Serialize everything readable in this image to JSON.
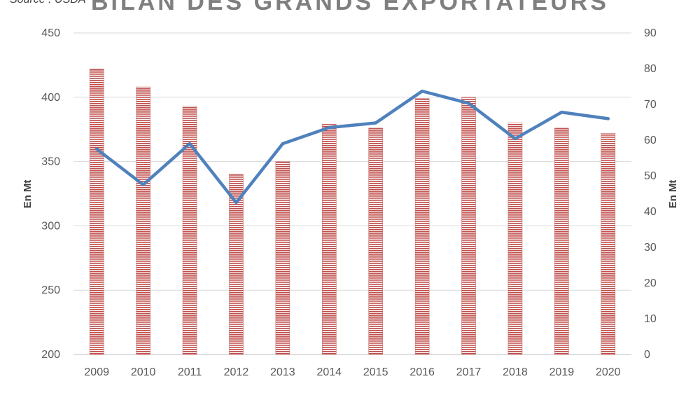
{
  "source": "Source : USDA",
  "chart_data": {
    "type": "bar",
    "title": "BILAN DES GRANDS EXPORTATEURS",
    "categories": [
      "2009",
      "2010",
      "2011",
      "2012",
      "2013",
      "2014",
      "2015",
      "2016",
      "2017",
      "2018",
      "2019",
      "2020"
    ],
    "series": [
      {
        "type": "bar",
        "axis": "left",
        "values": [
          422,
          408,
          393,
          340,
          350,
          379,
          376,
          399,
          400,
          380,
          376,
          372
        ],
        "color": "#c0504d"
      },
      {
        "type": "line",
        "axis": "right",
        "values": [
          57.5,
          47.5,
          59,
          42.5,
          59,
          63.5,
          64.8,
          73.7,
          70.3,
          60.4,
          67.8,
          66
        ],
        "color": "#4f81bd"
      }
    ],
    "ylabel": "En Mt",
    "y2label": "En Mt",
    "ylim": [
      200,
      450
    ],
    "y2lim": [
      0,
      90
    ],
    "yticks": [
      "200",
      "250",
      "300",
      "350",
      "400",
      "450"
    ],
    "y2ticks": [
      "0",
      "10",
      "20",
      "30",
      "40",
      "50",
      "60",
      "70",
      "80",
      "90"
    ],
    "grid": true
  }
}
